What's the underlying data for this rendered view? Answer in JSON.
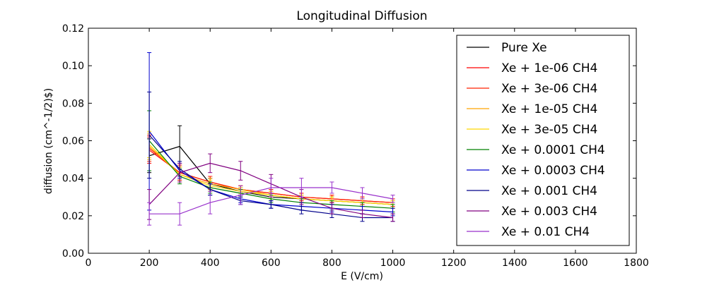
{
  "chart_data": {
    "type": "line",
    "title": "Longitudinal Diffusion",
    "xlabel": "E (V/cm)",
    "ylabel": "diffusion (cm^-1/2)$)",
    "xlim": [
      0,
      1800
    ],
    "ylim": [
      0,
      0.12
    ],
    "xticks": [
      0,
      200,
      400,
      600,
      800,
      1000,
      1200,
      1400,
      1600,
      1800
    ],
    "xtick_labels": [
      "0",
      "200",
      "400",
      "600",
      "800",
      "1000",
      "1200",
      "1400",
      "1600",
      "1800"
    ],
    "yticks": [
      0,
      0.02,
      0.04,
      0.06,
      0.08,
      0.1,
      0.12
    ],
    "ytick_labels": [
      "0.00",
      "0.02",
      "0.04",
      "0.06",
      "0.08",
      "0.10",
      "0.12"
    ],
    "grid": false,
    "legend_position": "top-right",
    "x": [
      200,
      300,
      400,
      500,
      600,
      700,
      800,
      900,
      1000
    ],
    "series": [
      {
        "name": "Pure Xe",
        "color": "#000000",
        "values": [
          0.052,
          0.057,
          0.037,
          0.033,
          0.03,
          0.029,
          0.028,
          0.027,
          0.026
        ],
        "errors": [
          0.009,
          0.011,
          0.003,
          0.002,
          0.002,
          0.002,
          0.002,
          0.002,
          0.002
        ]
      },
      {
        "name": "Xe + 1e-06 CH4",
        "color": "#ff0000",
        "values": [
          0.055,
          0.043,
          0.038,
          0.034,
          0.032,
          0.03,
          0.029,
          0.028,
          0.027
        ],
        "errors": [
          0.007,
          0.004,
          0.003,
          0.002,
          0.002,
          0.002,
          0.002,
          0.002,
          0.002
        ]
      },
      {
        "name": "Xe + 3e-06 CH4",
        "color": "#ff2200",
        "values": [
          0.056,
          0.043,
          0.038,
          0.034,
          0.032,
          0.03,
          0.029,
          0.028,
          0.027
        ],
        "errors": [
          0.007,
          0.004,
          0.003,
          0.002,
          0.002,
          0.002,
          0.002,
          0.002,
          0.002
        ]
      },
      {
        "name": "Xe + 1e-05 CH4",
        "color": "#ffa500",
        "values": [
          0.057,
          0.042,
          0.037,
          0.034,
          0.031,
          0.029,
          0.028,
          0.027,
          0.026
        ],
        "errors": [
          0.007,
          0.004,
          0.003,
          0.002,
          0.002,
          0.002,
          0.002,
          0.002,
          0.002
        ]
      },
      {
        "name": "Xe + 3e-05 CH4",
        "color": "#ffd700",
        "values": [
          0.058,
          0.042,
          0.036,
          0.033,
          0.031,
          0.029,
          0.028,
          0.027,
          0.026
        ],
        "errors": [
          0.007,
          0.004,
          0.003,
          0.002,
          0.002,
          0.002,
          0.002,
          0.002,
          0.002
        ]
      },
      {
        "name": "Xe + 0.0001 CH4",
        "color": "#008000",
        "values": [
          0.06,
          0.041,
          0.035,
          0.032,
          0.029,
          0.027,
          0.026,
          0.025,
          0.024
        ],
        "errors": [
          0.016,
          0.004,
          0.003,
          0.002,
          0.002,
          0.002,
          0.002,
          0.002,
          0.002
        ]
      },
      {
        "name": "Xe + 0.0003 CH4",
        "color": "#0000cd",
        "values": [
          0.065,
          0.044,
          0.034,
          0.029,
          0.026,
          0.025,
          0.024,
          0.023,
          0.022
        ],
        "errors": [
          0.042,
          0.004,
          0.003,
          0.002,
          0.002,
          0.002,
          0.002,
          0.002,
          0.002
        ]
      },
      {
        "name": "Xe + 0.001 CH4",
        "color": "#00008b",
        "values": [
          0.063,
          0.045,
          0.034,
          0.028,
          0.026,
          0.023,
          0.021,
          0.019,
          0.019
        ],
        "errors": [
          0.023,
          0.004,
          0.003,
          0.002,
          0.002,
          0.002,
          0.002,
          0.002,
          0.002
        ]
      },
      {
        "name": "Xe + 0.003 CH4",
        "color": "#800080",
        "values": [
          0.026,
          0.043,
          0.048,
          0.044,
          0.037,
          0.03,
          0.024,
          0.021,
          0.019
        ],
        "errors": [
          0.008,
          0.005,
          0.005,
          0.005,
          0.005,
          0.004,
          0.003,
          0.002,
          0.002
        ]
      },
      {
        "name": "Xe + 0.01 CH4",
        "color": "#9932cc",
        "values": [
          0.021,
          0.021,
          0.027,
          0.031,
          0.035,
          0.035,
          0.035,
          0.032,
          0.029
        ],
        "errors": [
          0.006,
          0.006,
          0.006,
          0.005,
          0.005,
          0.005,
          0.003,
          0.003,
          0.002
        ]
      }
    ]
  }
}
